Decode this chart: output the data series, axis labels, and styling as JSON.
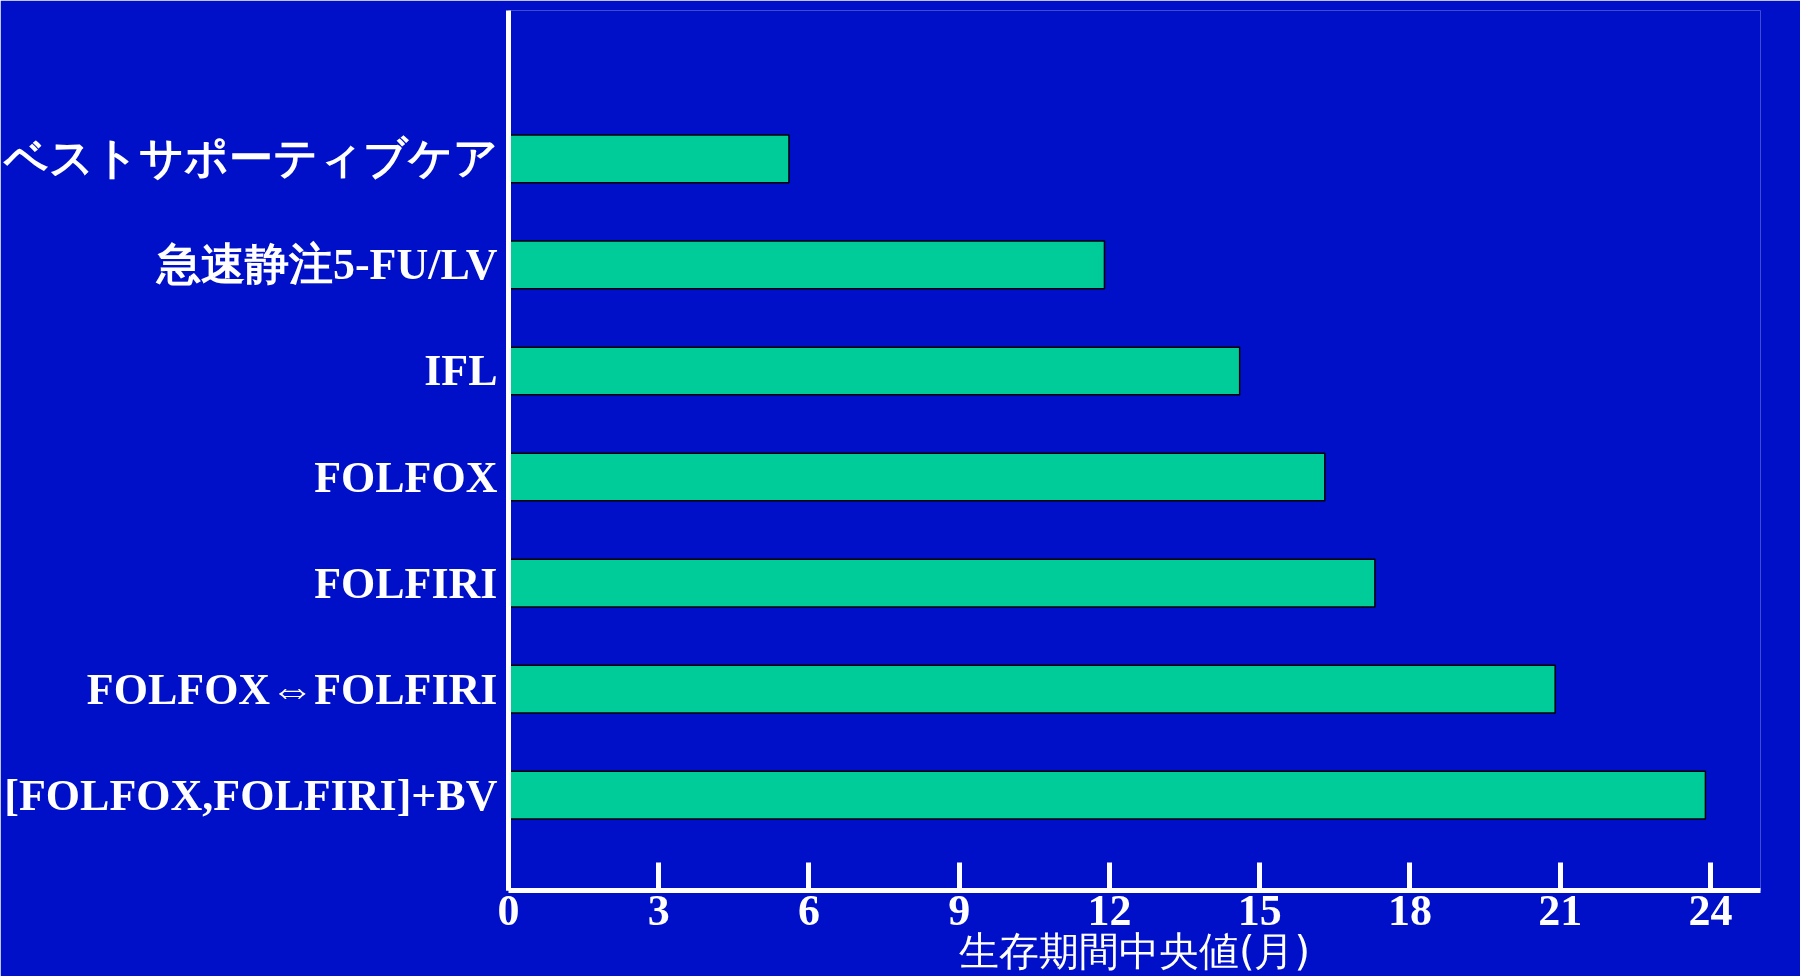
{
  "chart_data": {
    "type": "bar",
    "orientation": "horizontal",
    "xlabel": "生存期間中央値(月)",
    "categories": [
      "ベストサポーティブケア",
      "急速静注5-FU/LV",
      "IFL",
      "FOLFOX",
      "FOLFIRI",
      "FOLFOX⇔FOLFIRI",
      "[FOLFOX,FOLFIRI]+BV"
    ],
    "values": [
      5.6,
      11.9,
      14.6,
      16.3,
      17.3,
      20.9,
      23.9
    ],
    "color": "#00cc99",
    "xlim": [
      0,
      25
    ],
    "xticks": [
      0,
      3,
      6,
      9,
      12,
      15,
      18,
      21,
      24
    ],
    "grid": false,
    "legend": false
  }
}
